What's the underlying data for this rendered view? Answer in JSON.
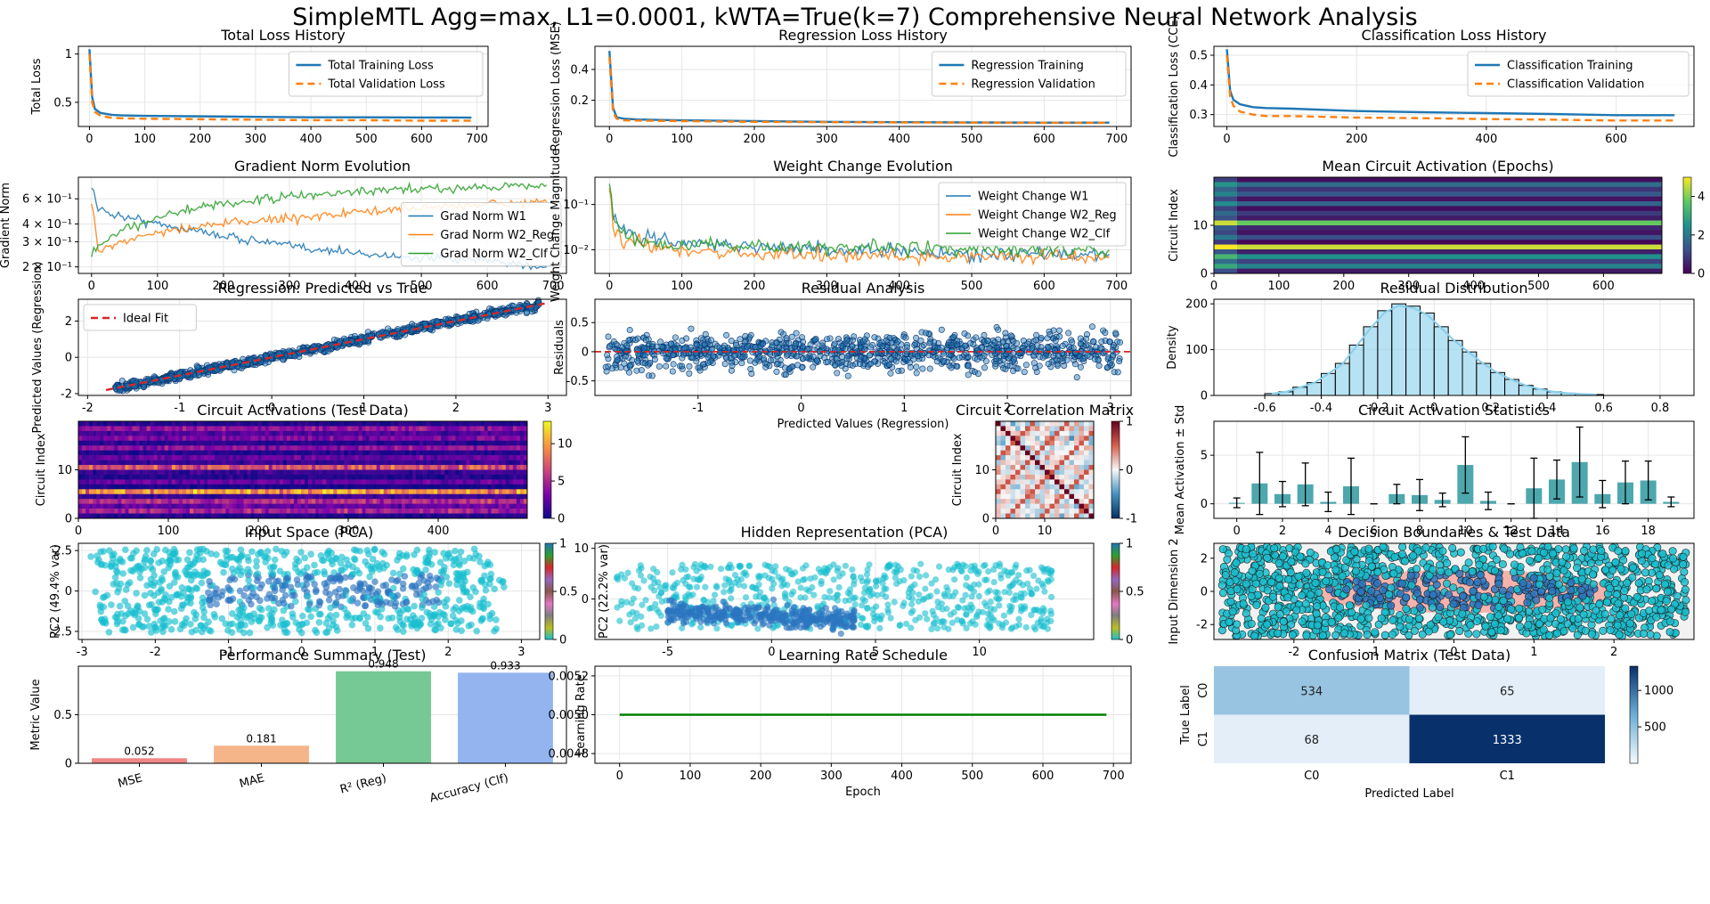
{
  "figure": {
    "suptitle": "SimpleMTL Agg=max, L1=0.0001, kWTA=True(k=7) Comprehensive Neural Network Analysis"
  },
  "colors": {
    "blue": "#1f77b4",
    "orange": "#ff7f0e",
    "green": "#2ca02c",
    "red": "#d62728",
    "teal": "#3a9ea5",
    "skyblue": "#87ceeb",
    "dark_navy": "#08306b"
  },
  "chart_data": [
    {
      "id": "total_loss",
      "type": "line",
      "title": "Total Loss History",
      "xlabel": "",
      "ylabel": "Total Loss",
      "xlim": [
        -20,
        720
      ],
      "ylim": [
        0.25,
        1.08
      ],
      "xticks": [
        0,
        100,
        200,
        300,
        400,
        500,
        600,
        700
      ],
      "yticks": [
        0.5,
        1.0
      ],
      "legend": "upper right",
      "grid": true,
      "series": [
        {
          "name": "Total Training Loss",
          "style": "solid",
          "color": "#1f77b4",
          "x": [
            0,
            5,
            10,
            20,
            40,
            60,
            100,
            200,
            300,
            400,
            500,
            600,
            690
          ],
          "y": [
            1.05,
            0.55,
            0.43,
            0.39,
            0.37,
            0.365,
            0.36,
            0.355,
            0.35,
            0.345,
            0.345,
            0.343,
            0.342
          ]
        },
        {
          "name": "Total Validation Loss",
          "style": "dashed",
          "color": "#ff7f0e",
          "x": [
            0,
            5,
            10,
            20,
            40,
            60,
            100,
            200,
            300,
            400,
            500,
            600,
            690
          ],
          "y": [
            1.0,
            0.5,
            0.4,
            0.36,
            0.34,
            0.335,
            0.33,
            0.325,
            0.32,
            0.315,
            0.315,
            0.31,
            0.31
          ]
        }
      ]
    },
    {
      "id": "reg_loss",
      "type": "line",
      "title": "Regression Loss History",
      "xlabel": "",
      "ylabel": "Regression Loss (MSE)",
      "xlim": [
        -20,
        720
      ],
      "ylim": [
        0.03,
        0.55
      ],
      "xticks": [
        0,
        100,
        200,
        300,
        400,
        500,
        600,
        700
      ],
      "yticks": [
        0.2,
        0.4
      ],
      "legend": "upper right",
      "grid": true,
      "series": [
        {
          "name": "Regression Training",
          "style": "solid",
          "color": "#1f77b4",
          "x": [
            0,
            5,
            10,
            20,
            40,
            100,
            200,
            300,
            400,
            500,
            600,
            690
          ],
          "y": [
            0.52,
            0.15,
            0.09,
            0.08,
            0.075,
            0.07,
            0.065,
            0.06,
            0.058,
            0.056,
            0.055,
            0.055
          ]
        },
        {
          "name": "Regression Validation",
          "style": "dashed",
          "color": "#ff7f0e",
          "x": [
            0,
            5,
            10,
            20,
            40,
            100,
            200,
            300,
            400,
            500,
            600,
            690
          ],
          "y": [
            0.48,
            0.12,
            0.08,
            0.07,
            0.068,
            0.065,
            0.06,
            0.058,
            0.056,
            0.055,
            0.054,
            0.054
          ]
        }
      ]
    },
    {
      "id": "clf_loss",
      "type": "line",
      "title": "Classification Loss History",
      "xlabel": "",
      "ylabel": "Classification Loss (CCE)",
      "xlim": [
        -20,
        720
      ],
      "ylim": [
        0.26,
        0.53
      ],
      "xticks": [
        0,
        200,
        400,
        600
      ],
      "yticks": [
        0.3,
        0.4,
        0.5
      ],
      "legend": "upper right",
      "grid": true,
      "series": [
        {
          "name": "Classification Training",
          "style": "solid",
          "color": "#1f77b4",
          "x": [
            0,
            5,
            10,
            20,
            40,
            60,
            100,
            200,
            300,
            400,
            500,
            600,
            690
          ],
          "y": [
            0.52,
            0.38,
            0.35,
            0.335,
            0.325,
            0.322,
            0.32,
            0.312,
            0.308,
            0.305,
            0.302,
            0.298,
            0.298
          ]
        },
        {
          "name": "Classification Validation",
          "style": "dashed",
          "color": "#ff7f0e",
          "x": [
            0,
            5,
            10,
            20,
            40,
            60,
            100,
            200,
            300,
            400,
            500,
            600,
            690
          ],
          "y": [
            0.5,
            0.36,
            0.33,
            0.31,
            0.3,
            0.295,
            0.295,
            0.29,
            0.288,
            0.285,
            0.283,
            0.28,
            0.28
          ]
        }
      ]
    },
    {
      "id": "grad_norm",
      "type": "line",
      "title": "Gradient Norm Evolution",
      "xlabel": "",
      "ylabel": "Gradient Norm",
      "yscale": "log",
      "xlim": [
        -20,
        720
      ],
      "ylim": [
        0.18,
        0.85
      ],
      "xticks": [
        0,
        100,
        200,
        300,
        400,
        500,
        600,
        700
      ],
      "yticks": [
        0.2,
        0.3,
        0.4,
        0.6
      ],
      "yticklabels": [
        "2 × 10⁻¹",
        "3 × 10⁻¹",
        "4 × 10⁻¹",
        "6 × 10⁻¹"
      ],
      "legend": "right",
      "grid": true,
      "series": [
        {
          "name": "Grad Norm W1",
          "color": "#1f77b4",
          "x": [
            0,
            10,
            50,
            100,
            200,
            300,
            400,
            500,
            600,
            690
          ],
          "y": [
            0.75,
            0.5,
            0.45,
            0.4,
            0.33,
            0.28,
            0.25,
            0.23,
            0.22,
            0.2
          ]
        },
        {
          "name": "Grad Norm W2_Reg",
          "color": "#ff7f0e",
          "x": [
            0,
            10,
            50,
            100,
            200,
            300,
            400,
            500,
            600,
            690
          ],
          "y": [
            0.55,
            0.26,
            0.3,
            0.35,
            0.4,
            0.44,
            0.48,
            0.52,
            0.55,
            0.57
          ]
        },
        {
          "name": "Grad Norm W2_Clf",
          "color": "#2ca02c",
          "x": [
            0,
            10,
            50,
            100,
            200,
            300,
            400,
            500,
            600,
            690
          ],
          "y": [
            0.24,
            0.28,
            0.36,
            0.45,
            0.55,
            0.62,
            0.67,
            0.7,
            0.73,
            0.75
          ]
        }
      ]
    },
    {
      "id": "weight_change",
      "type": "line",
      "title": "Weight Change Evolution",
      "xlabel": "",
      "ylabel": "Weight Change Magnitude",
      "yscale": "log",
      "xlim": [
        -20,
        720
      ],
      "ylim": [
        0.003,
        0.4
      ],
      "xticks": [
        0,
        100,
        200,
        300,
        400,
        500,
        600,
        700
      ],
      "yticks": [
        0.01,
        0.1
      ],
      "yticklabels": [
        "10⁻²",
        "10⁻¹"
      ],
      "legend": "upper right",
      "grid": true,
      "series": [
        {
          "name": "Weight Change W1",
          "color": "#1f77b4",
          "x": [
            0,
            5,
            20,
            50,
            100,
            200,
            300,
            400,
            500,
            600,
            690
          ],
          "y": [
            0.3,
            0.05,
            0.025,
            0.018,
            0.014,
            0.012,
            0.01,
            0.009,
            0.008,
            0.008,
            0.008
          ]
        },
        {
          "name": "Weight Change W2_Reg",
          "color": "#ff7f0e",
          "x": [
            0,
            5,
            20,
            50,
            100,
            200,
            300,
            400,
            500,
            600,
            690
          ],
          "y": [
            0.2,
            0.03,
            0.015,
            0.012,
            0.01,
            0.008,
            0.008,
            0.007,
            0.007,
            0.007,
            0.007
          ]
        },
        {
          "name": "Weight Change W2_Clf",
          "color": "#2ca02c",
          "x": [
            0,
            5,
            20,
            50,
            100,
            200,
            300,
            400,
            500,
            600,
            690
          ],
          "y": [
            0.25,
            0.04,
            0.02,
            0.015,
            0.013,
            0.012,
            0.011,
            0.011,
            0.01,
            0.01,
            0.01
          ]
        }
      ]
    },
    {
      "id": "mean_circuit_epochs",
      "type": "heatmap",
      "title": "Mean Circuit Activation (Epochs)",
      "xlabel": "",
      "ylabel": "Circuit Index",
      "xlim": [
        0,
        690
      ],
      "ylim": [
        0,
        20
      ],
      "xticks": [
        0,
        100,
        200,
        300,
        400,
        500,
        600
      ],
      "yticks": [
        0,
        10
      ],
      "colormap": "viridis",
      "clim": [
        0,
        5
      ],
      "cbar_ticks": [
        0,
        2,
        4
      ],
      "row_means": [
        0.2,
        1.8,
        0.8,
        1.4,
        0.3,
        1.6,
        0.2,
        0.9,
        0.4,
        3.8,
        0.6,
        0.3,
        1.2,
        0.1,
        4.6,
        0.5,
        2.5,
        1.0,
        2.2,
        0.4
      ]
    },
    {
      "id": "pred_vs_true",
      "type": "scatter",
      "title": "Regression: Predicted vs True",
      "xlabel": "",
      "ylabel": "Predicted Values (Regression)",
      "xlim": [
        -2.1,
        3.2
      ],
      "ylim": [
        -2.1,
        3.2
      ],
      "xticks": [
        -2,
        -1,
        0,
        1,
        2,
        3
      ],
      "yticks": [
        -2,
        0,
        2
      ],
      "legend": "upper left",
      "grid": true,
      "series": [
        {
          "name": "",
          "color": "#1f77b4",
          "note_points": "approximately y = x with small noise",
          "x": [
            -1.7,
            -1.2,
            -0.8,
            -0.4,
            0.0,
            0.4,
            0.8,
            1.2,
            1.6,
            2.0,
            2.5,
            2.9
          ],
          "y": [
            -1.75,
            -1.15,
            -0.85,
            -0.35,
            0.05,
            0.35,
            0.85,
            1.15,
            1.65,
            1.95,
            2.45,
            2.9
          ]
        },
        {
          "name": "Ideal Fit",
          "color": "#d62728",
          "style": "dashed",
          "x": [
            -1.8,
            3.0
          ],
          "y": [
            -1.8,
            3.0
          ]
        }
      ]
    },
    {
      "id": "residual_analysis",
      "type": "scatter",
      "title": "Residual Analysis",
      "xlabel": "Predicted Values (Regression)",
      "ylabel": "Residuals",
      "xlim": [
        -2.0,
        3.2
      ],
      "ylim": [
        -0.75,
        0.9
      ],
      "xticks": [
        -1,
        0,
        1,
        2,
        3
      ],
      "yticks": [
        -0.5,
        0.0,
        0.5
      ],
      "grid": true,
      "zero_line_color": "#d62728"
    },
    {
      "id": "residual_distribution",
      "type": "bar",
      "title": "Residual Distribution",
      "xlabel": "",
      "ylabel": "Density",
      "xlim": [
        -0.78,
        0.92
      ],
      "ylim": [
        0,
        210
      ],
      "xticks": [
        -0.6,
        -0.4,
        -0.2,
        0.0,
        0.2,
        0.4,
        0.6,
        0.8
      ],
      "yticks": [
        0,
        100,
        200
      ],
      "grid": true,
      "bin_edges": [
        -0.6,
        -0.55,
        -0.5,
        -0.45,
        -0.4,
        -0.35,
        -0.3,
        -0.25,
        -0.2,
        -0.15,
        -0.1,
        -0.05,
        0.0,
        0.05,
        0.1,
        0.15,
        0.2,
        0.25,
        0.3,
        0.35,
        0.4,
        0.45,
        0.5,
        0.55,
        0.6
      ],
      "values": [
        4,
        8,
        18,
        28,
        48,
        70,
        110,
        150,
        185,
        200,
        195,
        180,
        150,
        120,
        95,
        70,
        50,
        35,
        22,
        14,
        8,
        5,
        3,
        2
      ]
    },
    {
      "id": "circuit_activations_test",
      "type": "heatmap",
      "title": "Circuit Activations (Test Data)",
      "xlabel": "",
      "ylabel": "Circuit Index",
      "xlim": [
        0,
        499
      ],
      "ylim": [
        0,
        20
      ],
      "xticks": [
        0,
        100,
        200,
        300,
        400
      ],
      "yticks": [
        0,
        10
      ],
      "colormap": "plasma",
      "clim": [
        0,
        13
      ],
      "cbar_ticks": [
        0,
        5,
        10
      ]
    },
    {
      "id": "circuit_corr",
      "type": "heatmap",
      "title": "Circuit Correlation Matrix",
      "xlabel": "",
      "ylabel": "Circuit Index",
      "xlim": [
        0,
        20
      ],
      "ylim": [
        0,
        20
      ],
      "xticks": [
        0,
        10
      ],
      "yticks": [
        0,
        10
      ],
      "colormap": "RdBu_r",
      "clim": [
        -1,
        1
      ],
      "cbar_ticks": [
        -1,
        0,
        1
      ]
    },
    {
      "id": "circuit_stats",
      "type": "bar",
      "title": "Circuit Activation Statistics",
      "xlabel": "",
      "ylabel": "Mean Activation ± Std",
      "xlim": [
        -1,
        20
      ],
      "ylim": [
        -1.5,
        8.5
      ],
      "xticks": [
        0,
        2,
        4,
        6,
        8,
        10,
        12,
        14,
        16,
        18
      ],
      "yticks": [
        0,
        5
      ],
      "grid": true,
      "categories": [
        0,
        1,
        2,
        3,
        4,
        5,
        6,
        7,
        8,
        9,
        10,
        11,
        12,
        13,
        14,
        15,
        16,
        17,
        18,
        19
      ],
      "values": [
        0.1,
        2.1,
        1.0,
        2.0,
        0.2,
        1.8,
        0.0,
        1.0,
        0.9,
        0.4,
        4.0,
        0.3,
        0.0,
        1.6,
        2.5,
        4.3,
        1.0,
        2.2,
        2.4,
        0.2
      ],
      "errors": [
        0.5,
        3.2,
        1.3,
        2.2,
        1.0,
        2.9,
        0.0,
        1.0,
        1.6,
        0.7,
        2.9,
        0.9,
        0.0,
        3.1,
        2.0,
        3.6,
        1.4,
        2.2,
        2.0,
        0.5
      ]
    },
    {
      "id": "input_pca",
      "type": "scatter",
      "title": "Input Space (PCA)",
      "xlabel": "",
      "ylabel": "PC2 (49.4% var)",
      "xlim": [
        -3.05,
        3.25
      ],
      "ylim": [
        -3.0,
        2.95
      ],
      "xticks": [
        -3,
        -2,
        -1,
        0,
        1,
        2,
        3
      ],
      "yticks": [
        -2.5,
        0.0,
        2.5
      ],
      "grid": true,
      "colormap": "tab10",
      "cbar_ticks": [
        0.0,
        0.5,
        1.0
      ]
    },
    {
      "id": "hidden_pca",
      "type": "scatter",
      "title": "Hidden Representation (PCA)",
      "xlabel": "",
      "ylabel": "PC2 (22.2% var)",
      "xlim": [
        -8.5,
        15.5
      ],
      "ylim": [
        -8,
        11
      ],
      "xticks": [
        -5,
        0,
        5,
        10
      ],
      "yticks": [
        0,
        10
      ],
      "grid": true,
      "colormap": "tab10",
      "cbar_ticks": [
        0.0,
        0.5,
        1.0
      ]
    },
    {
      "id": "decision_boundaries",
      "type": "scatter",
      "title": "Decision Boundaries & Test Data",
      "xlabel": "",
      "ylabel": "Input Dimension 2",
      "xlim": [
        -3.0,
        3.0
      ],
      "ylim": [
        -2.9,
        2.9
      ],
      "xticks": [
        -2,
        -1,
        0,
        1,
        2
      ],
      "yticks": [
        -2,
        0,
        2
      ]
    },
    {
      "id": "perf_summary",
      "type": "bar",
      "title": "Performance Summary (Test)",
      "xlabel": "",
      "ylabel": "Metric Value",
      "ylim": [
        0,
        1.0
      ],
      "yticks": [
        0.0,
        0.5
      ],
      "grid": true,
      "categories": [
        "MSE",
        "MAE",
        "R² (Reg)",
        "Accuracy (Clf)"
      ],
      "values": [
        0.052,
        0.181,
        0.948,
        0.933
      ],
      "labels": [
        "0.052",
        "0.181",
        "0.948",
        "0.933"
      ],
      "colors": [
        "#f08080",
        "#f4b183",
        "#6fc58e",
        "#8db0ee"
      ]
    },
    {
      "id": "lr_schedule",
      "type": "line",
      "title": "Learning Rate Schedule",
      "xlabel": "Epoch",
      "ylabel": "Learning Rate",
      "xlim": [
        -35,
        725
      ],
      "ylim": [
        0.00475,
        0.00525
      ],
      "xticks": [
        0,
        100,
        200,
        300,
        400,
        500,
        600,
        700
      ],
      "yticks": [
        0.0048,
        0.005,
        0.0052
      ],
      "yticklabels": [
        "0.0048",
        "0.0050",
        "0.0052"
      ],
      "grid": true,
      "series": [
        {
          "name": "",
          "color": "green",
          "x": [
            0,
            690
          ],
          "y": [
            0.005,
            0.005
          ]
        }
      ]
    },
    {
      "id": "confusion",
      "type": "heatmap",
      "title": "Confusion Matrix (Test Data)",
      "xlabel": "Predicted Label",
      "ylabel": "True Label",
      "categories": [
        "C0",
        "C1"
      ],
      "values": [
        [
          534,
          65
        ],
        [
          68,
          1333
        ]
      ],
      "colormap": "Blues",
      "clim": [
        65,
        1333
      ],
      "cbar_ticks": [
        500,
        1000
      ]
    }
  ]
}
